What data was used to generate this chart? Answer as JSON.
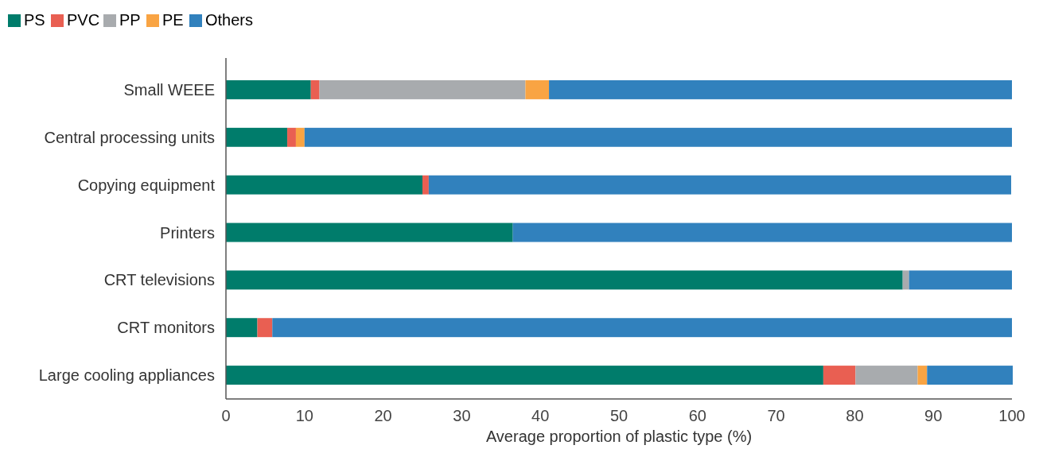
{
  "chart_data": {
    "type": "bar",
    "orientation": "horizontal",
    "stacked": true,
    "xlabel": "Average proportion of plastic type (%)",
    "categories": [
      "Small WEEE",
      "Central processing units",
      "Copying equipment",
      "Printers",
      "CRT televisions",
      "CRT monitors",
      "Large cooling appliances"
    ],
    "series": [
      {
        "name": "PS",
        "color": "#007c6b",
        "values": [
          10.8,
          7.8,
          25.0,
          36.5,
          86.1,
          4.0,
          76.0
        ]
      },
      {
        "name": "PVC",
        "color": "#e95f52",
        "values": [
          1.1,
          1.1,
          0.8,
          null,
          null,
          1.9,
          4.1
        ]
      },
      {
        "name": "PP",
        "color": "#a8abae",
        "values": [
          26.2,
          null,
          null,
          null,
          0.8,
          null,
          7.9
        ]
      },
      {
        "name": "PE",
        "color": "#f9a443",
        "values": [
          3.0,
          1.1,
          null,
          null,
          null,
          null,
          1.2
        ]
      },
      {
        "name": "Others",
        "color": "#3181bd",
        "values": [
          58.9,
          90.0,
          74.1,
          63.5,
          13.1,
          94.1,
          10.9
        ]
      }
    ],
    "xlim": [
      0,
      100
    ],
    "xticks": [
      0,
      10,
      20,
      30,
      40,
      50,
      60,
      70,
      80,
      90,
      100
    ],
    "legend": "top left",
    "grid": false
  }
}
